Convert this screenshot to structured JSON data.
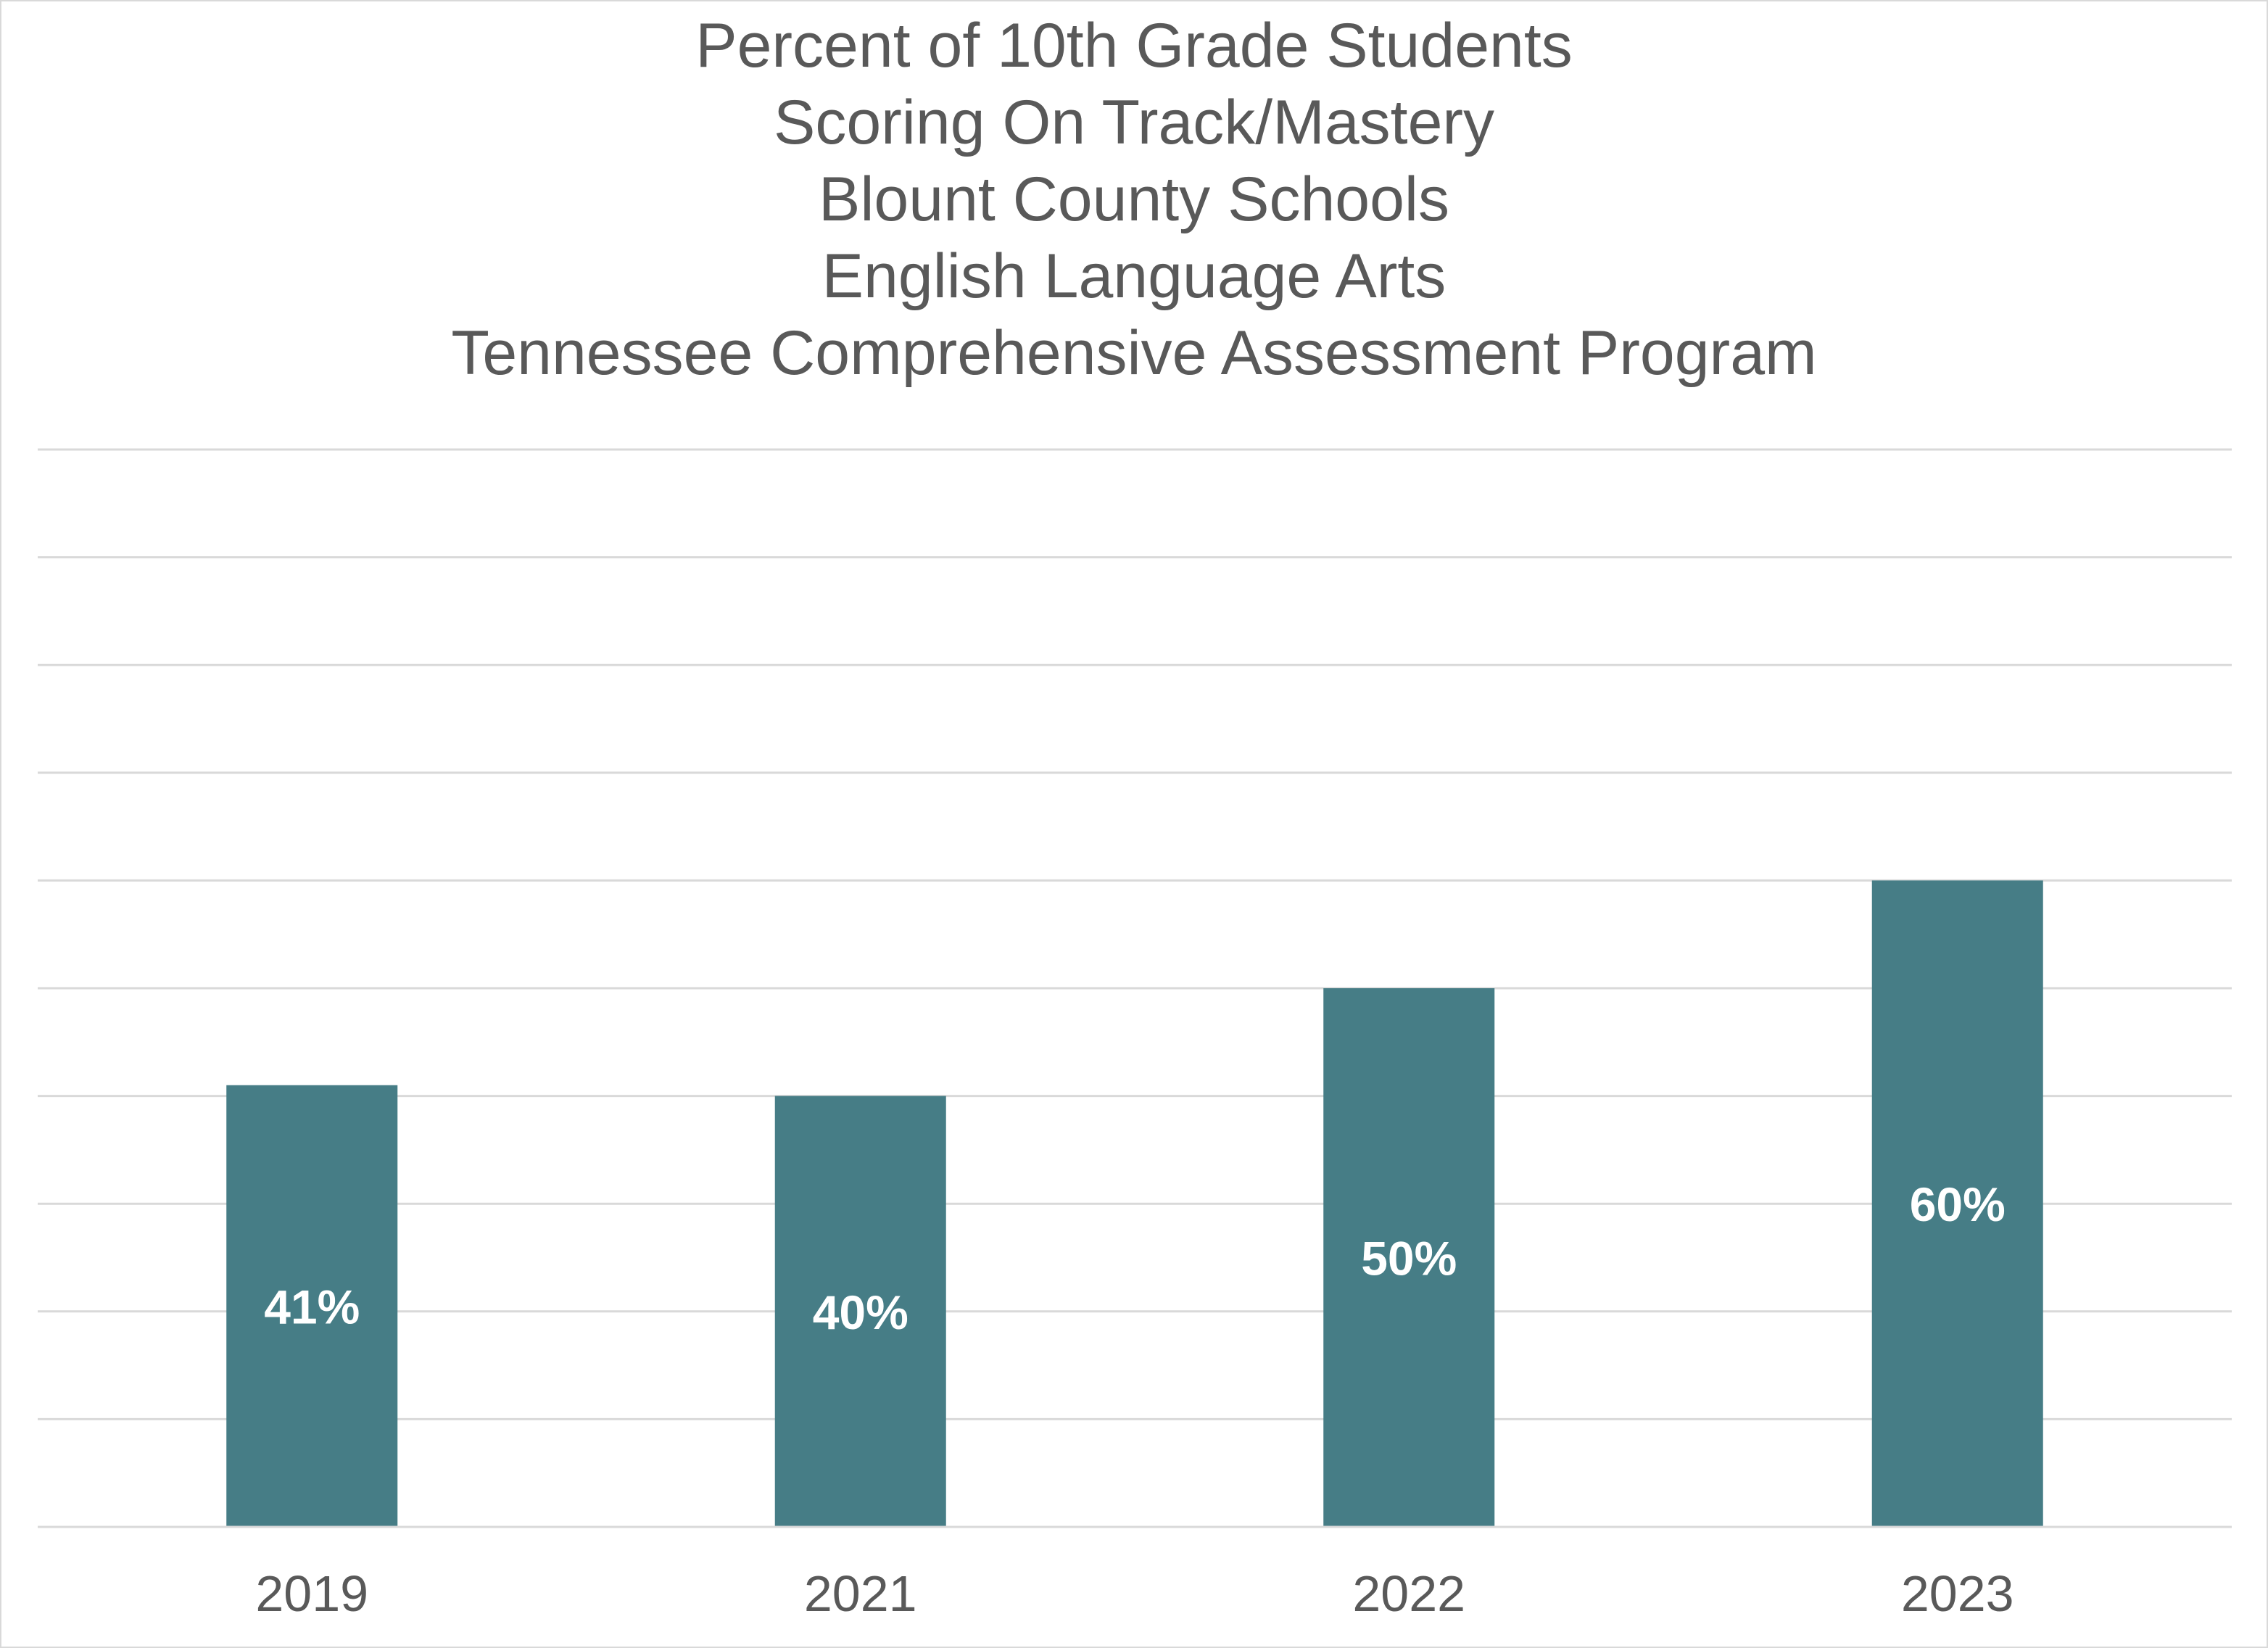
{
  "chart_data": {
    "type": "bar",
    "title_lines": [
      "Percent of 10th Grade Students",
      "Scoring On Track/Mastery",
      "Blount County Schools",
      "English Language Arts",
      "Tennessee Comprehensive Assessment Program"
    ],
    "categories": [
      "2019",
      "2021",
      "2022",
      "2023"
    ],
    "values": [
      41,
      40,
      50,
      60
    ],
    "data_labels": [
      "41%",
      "40%",
      "50%",
      "60%"
    ],
    "xlabel": "",
    "ylabel": "",
    "ylim": [
      0,
      100
    ],
    "ytick_step": 10,
    "y_axis_labels_shown": false,
    "grid": true,
    "legend": "none",
    "colors": {
      "bar": "#467d86",
      "text": "#595959",
      "grid": "#d9d9d9",
      "data_label": "#ffffff"
    }
  }
}
